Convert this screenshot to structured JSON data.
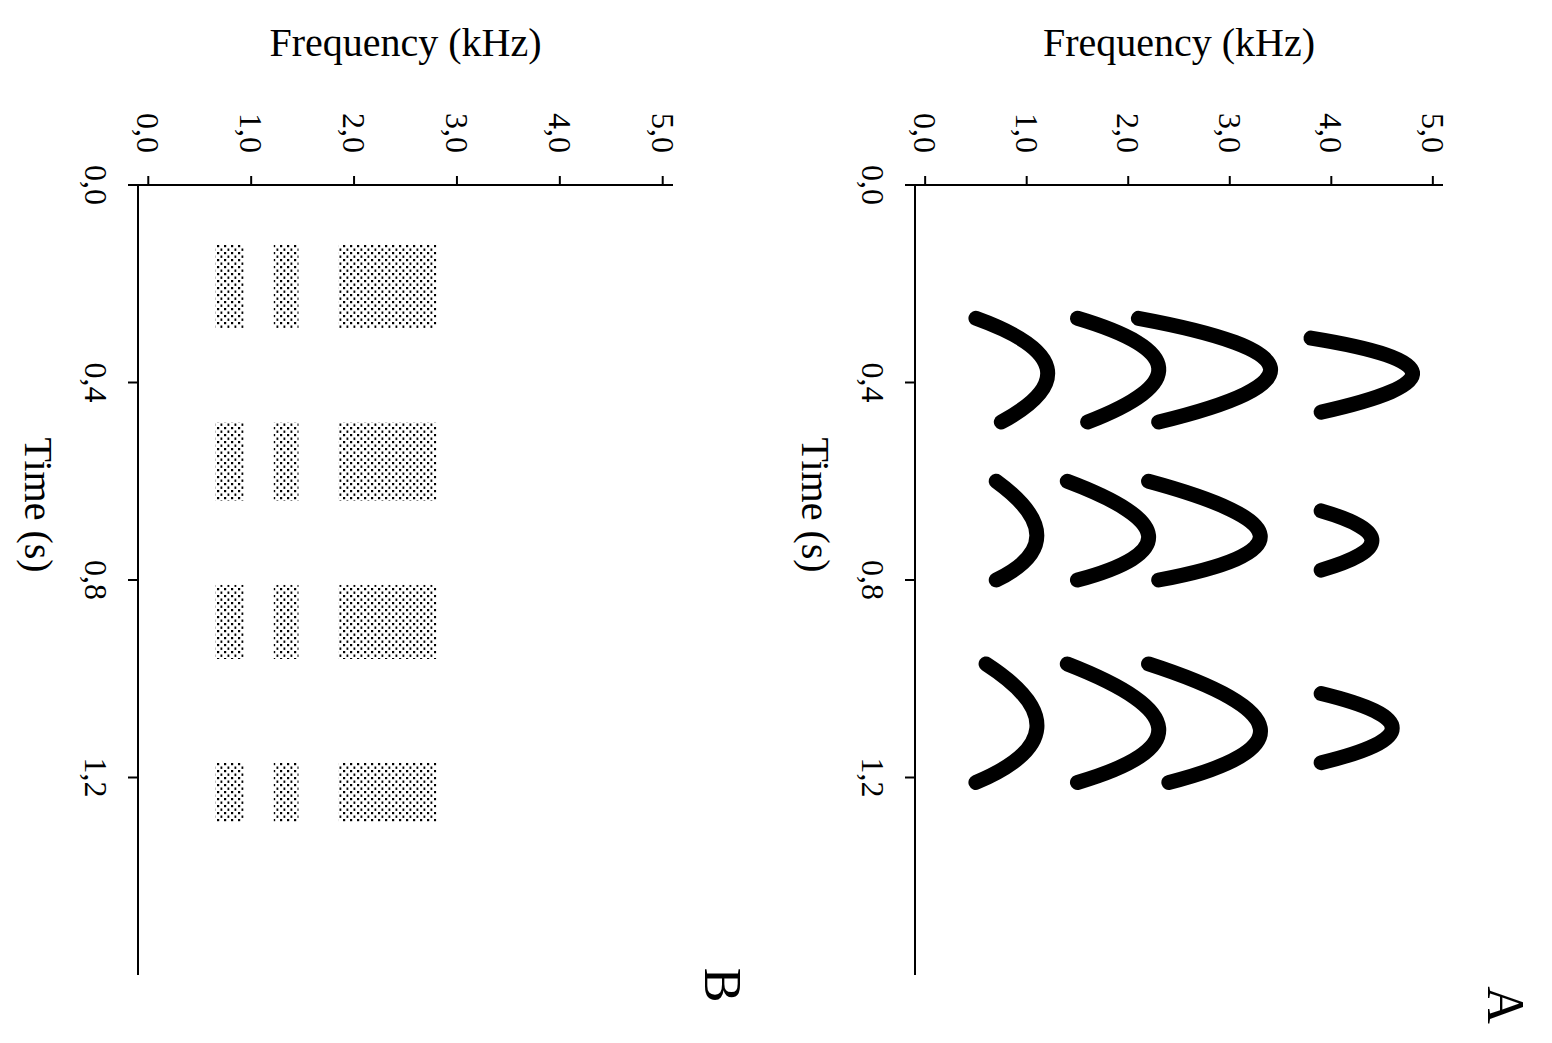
{
  "chart_data": [
    {
      "type": "spectrogram",
      "title": "A",
      "x_label": "Time (s)",
      "y_label": "Frequency (kHz)",
      "xlim": [
        0,
        1.6
      ],
      "xticks": [
        {
          "value": 0,
          "label": "0,0"
        },
        {
          "value": 0.4,
          "label": "0,4"
        },
        {
          "value": 0.8,
          "label": "0,8"
        },
        {
          "value": 1.2,
          "label": "1,2"
        }
      ],
      "ylim": [
        -0.1,
        5.1
      ],
      "yticks": [
        {
          "value": 0,
          "label": "0,0"
        },
        {
          "value": 1,
          "label": "1,0"
        },
        {
          "value": 2,
          "label": "2,0"
        },
        {
          "value": 3,
          "label": "3,0"
        },
        {
          "value": 4,
          "label": "4,0"
        },
        {
          "value": 5,
          "label": "5,0"
        }
      ],
      "color": "#000000",
      "notes": [
        {
          "harmonics": [
            {
              "time": [
                0.27,
                0.37,
                0.48
              ],
              "freq": [
                0.5,
                1.2,
                0.75
              ]
            },
            {
              "time": [
                0.27,
                0.37,
                0.48
              ],
              "freq": [
                1.5,
                2.3,
                1.6
              ]
            },
            {
              "time": [
                0.27,
                0.37,
                0.48
              ],
              "freq": [
                2.1,
                3.4,
                2.3
              ]
            },
            {
              "time": [
                0.31,
                0.38,
                0.46
              ],
              "freq": [
                3.8,
                4.8,
                3.9
              ]
            }
          ]
        },
        {
          "harmonics": [
            {
              "time": [
                0.6,
                0.71,
                0.8
              ],
              "freq": [
                0.7,
                1.1,
                0.7
              ]
            },
            {
              "time": [
                0.6,
                0.71,
                0.8
              ],
              "freq": [
                1.4,
                2.2,
                1.5
              ]
            },
            {
              "time": [
                0.6,
                0.71,
                0.8
              ],
              "freq": [
                2.2,
                3.3,
                2.3
              ]
            },
            {
              "time": [
                0.66,
                0.72,
                0.78
              ],
              "freq": [
                3.9,
                4.4,
                3.9
              ]
            }
          ]
        },
        {
          "harmonics": [
            {
              "time": [
                0.97,
                1.1,
                1.21
              ],
              "freq": [
                0.6,
                1.1,
                0.5
              ]
            },
            {
              "time": [
                0.97,
                1.1,
                1.21
              ],
              "freq": [
                1.4,
                2.3,
                1.5
              ]
            },
            {
              "time": [
                0.97,
                1.1,
                1.21
              ],
              "freq": [
                2.2,
                3.3,
                2.4
              ]
            },
            {
              "time": [
                1.03,
                1.1,
                1.17
              ],
              "freq": [
                3.9,
                4.6,
                3.9
              ]
            }
          ]
        }
      ]
    },
    {
      "type": "spectrogram",
      "title": "B",
      "x_label": "Time (s)",
      "y_label": "Frequency (kHz)",
      "xlim": [
        0,
        1.6
      ],
      "xticks": [
        {
          "value": 0,
          "label": "0,0"
        },
        {
          "value": 0.4,
          "label": "0,4"
        },
        {
          "value": 0.8,
          "label": "0,8"
        },
        {
          "value": 1.2,
          "label": "1,2"
        }
      ],
      "ylim": [
        -0.1,
        5.1
      ],
      "yticks": [
        {
          "value": 0,
          "label": "0,0"
        },
        {
          "value": 1,
          "label": "1,0"
        },
        {
          "value": 2,
          "label": "2,0"
        },
        {
          "value": 3,
          "label": "3,0"
        },
        {
          "value": 4,
          "label": "4,0"
        },
        {
          "value": 5,
          "label": "5,0"
        }
      ],
      "color": "#000000",
      "segments": [
        {
          "time": [
            0.12,
            0.29
          ],
          "freq": [
            0.65,
            0.93
          ]
        },
        {
          "time": [
            0.12,
            0.29
          ],
          "freq": [
            1.22,
            1.46
          ]
        },
        {
          "time": [
            0.12,
            0.29
          ],
          "freq": [
            1.85,
            2.8
          ]
        },
        {
          "time": [
            0.48,
            0.64
          ],
          "freq": [
            0.65,
            0.93
          ]
        },
        {
          "time": [
            0.48,
            0.64
          ],
          "freq": [
            1.22,
            1.46
          ]
        },
        {
          "time": [
            0.48,
            0.64
          ],
          "freq": [
            1.85,
            2.8
          ]
        },
        {
          "time": [
            0.81,
            0.96
          ],
          "freq": [
            0.65,
            0.93
          ]
        },
        {
          "time": [
            0.81,
            0.96
          ],
          "freq": [
            1.22,
            1.46
          ]
        },
        {
          "time": [
            0.81,
            0.96
          ],
          "freq": [
            1.85,
            2.8
          ]
        },
        {
          "time": [
            1.17,
            1.29
          ],
          "freq": [
            0.65,
            0.93
          ]
        },
        {
          "time": [
            1.17,
            1.29
          ],
          "freq": [
            1.22,
            1.46
          ]
        },
        {
          "time": [
            1.17,
            1.29
          ],
          "freq": [
            1.85,
            2.8
          ]
        }
      ]
    }
  ]
}
